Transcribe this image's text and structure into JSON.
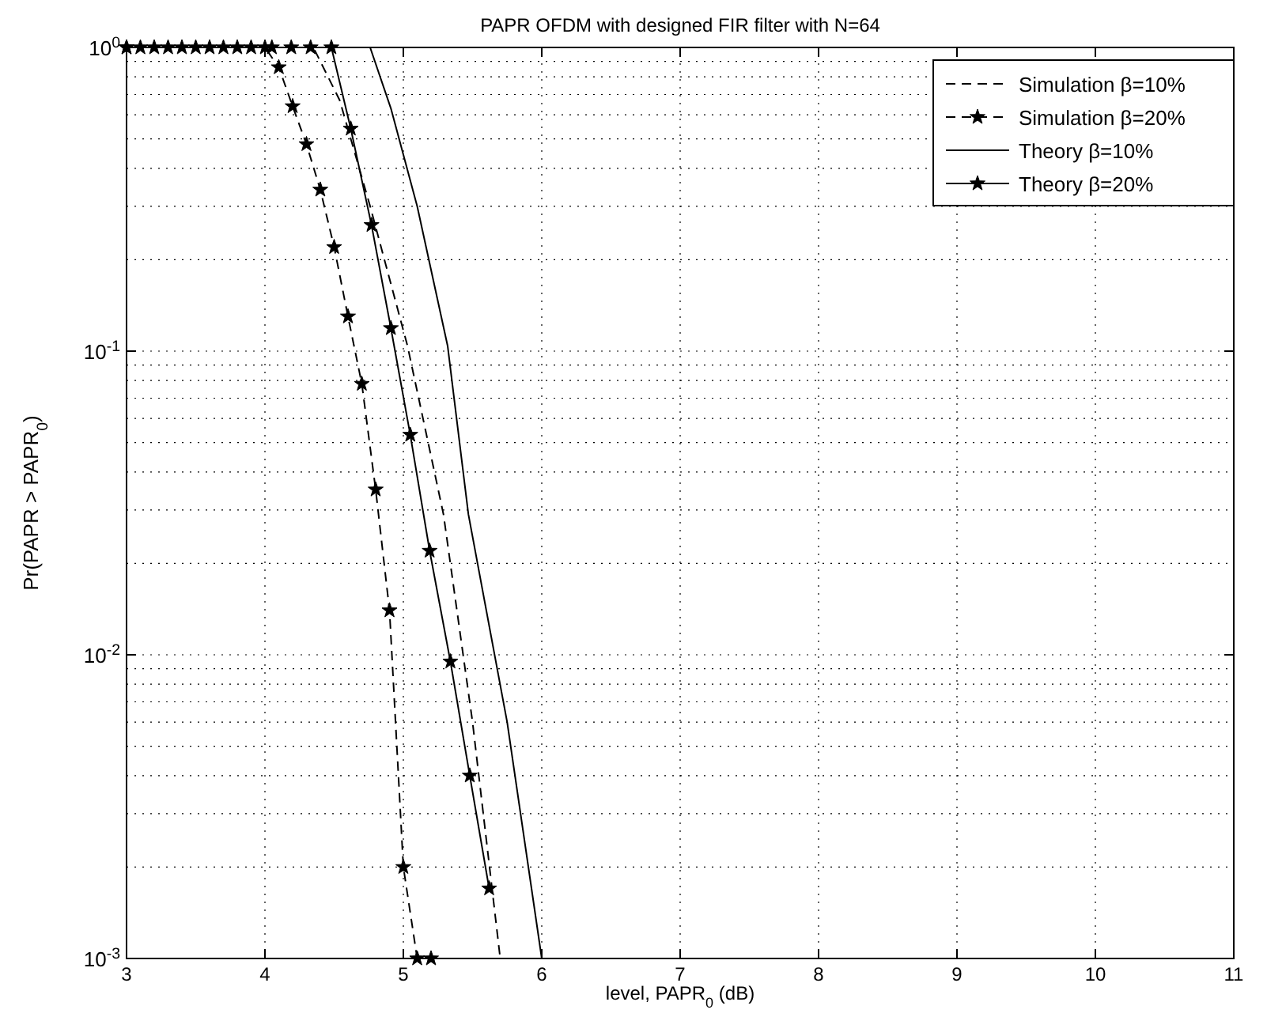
{
  "chart_data": {
    "type": "line",
    "title": "PAPR OFDM with designed FIR filter with N=64",
    "xlabel": "level, PAPR$_{0}$ (dB)",
    "ylabel": "Pr(PAPR > PAPR$_{0}$)",
    "log": "y",
    "grid": true,
    "legend": "top right",
    "xlim": [
      3,
      11
    ],
    "xticks": [
      3,
      4,
      5,
      6,
      7,
      8,
      9,
      10,
      11
    ],
    "ylim": [
      0.001,
      1
    ],
    "yticks": [
      {
        "value": 0.001,
        "label": "10$^{-3}$"
      },
      {
        "value": 0.01,
        "label": "10$^{-2}$"
      },
      {
        "value": 0.1,
        "label": "10$^{-1}$"
      },
      {
        "value": 1,
        "label": "10$^{0}$"
      }
    ],
    "series": [
      {
        "name": "Simulation β=10%",
        "color": "#000000",
        "line_style": "dashed",
        "marker": "none",
        "x": [
          3,
          4.35,
          4.54,
          4.76,
          5.03,
          5.29,
          5.5,
          5.7
        ],
        "values": [
          1,
          1,
          0.67,
          0.3,
          0.104,
          0.029,
          0.006,
          0.001
        ]
      },
      {
        "name": "Simulation β=20%",
        "color": "#000000",
        "line_style": "dashed",
        "marker": "star",
        "x": [
          3,
          3.1,
          3.2,
          3.3,
          3.4,
          3.5,
          3.6,
          3.7,
          3.8,
          3.9,
          4,
          4.1,
          4.2,
          4.3,
          4.4,
          4.5,
          4.6,
          4.7,
          4.8,
          4.9,
          5,
          5.1,
          5.2
        ],
        "values": [
          1,
          1,
          1,
          1,
          1,
          1,
          1,
          1,
          1,
          1,
          1,
          0.86,
          0.64,
          0.48,
          0.34,
          0.22,
          0.13,
          0.078,
          0.035,
          0.014,
          0.002,
          0.001,
          0.001
        ]
      },
      {
        "name": "Theory β=10%",
        "color": "#000000",
        "line_style": "solid",
        "marker": "none",
        "x": [
          3,
          4.76,
          4.91,
          5.1,
          5.32,
          5.47,
          5.75,
          6
        ],
        "values": [
          1,
          1,
          0.63,
          0.3,
          0.104,
          0.029,
          0.006,
          0.001
        ]
      },
      {
        "name": "Theory β=20%",
        "color": "#000000",
        "line_style": "solid",
        "marker": "star",
        "x": [
          3,
          4.05,
          4.19,
          4.33,
          4.48,
          4.62,
          4.77,
          4.91,
          5.05,
          5.19,
          5.34,
          5.48,
          5.62
        ],
        "values": [
          1,
          1,
          1,
          1,
          1,
          0.54,
          0.26,
          0.119,
          0.053,
          0.022,
          0.0095,
          0.004,
          0.0017
        ]
      }
    ]
  }
}
